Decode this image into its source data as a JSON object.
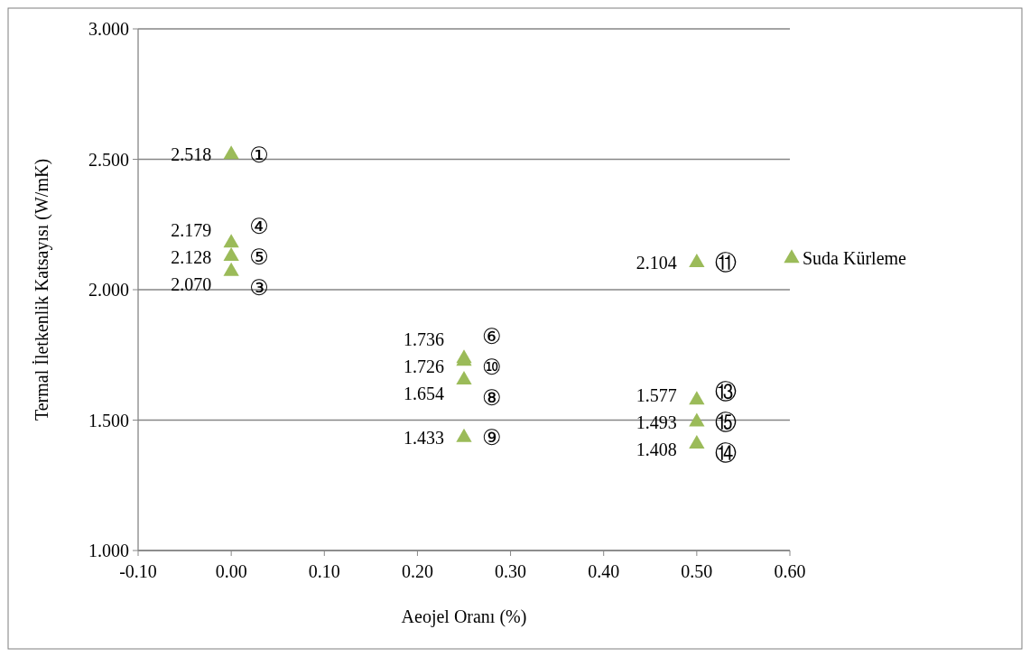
{
  "chart_data": {
    "type": "scatter",
    "xlabel": "Aeojel Oranı (%)",
    "ylabel": "Termal İletkenlik Katsayısı (W/mK)",
    "xlim": [
      -0.1,
      0.6
    ],
    "xticks": [
      {
        "value": -0.1,
        "label": "-0.10"
      },
      {
        "value": 0,
        "label": "0.00"
      },
      {
        "value": 0.1,
        "label": "0.10"
      },
      {
        "value": 0.2,
        "label": "0.20"
      },
      {
        "value": 0.3,
        "label": "0.30"
      },
      {
        "value": 0.4,
        "label": "0.40"
      },
      {
        "value": 0.5,
        "label": "0.50"
      },
      {
        "value": 0.6,
        "label": "0.60"
      }
    ],
    "ylim": [
      1,
      3
    ],
    "yticks": [
      {
        "value": 1,
        "label": "1.000"
      },
      {
        "value": 1.5,
        "label": "1.500"
      },
      {
        "value": 2,
        "label": "2.000"
      },
      {
        "value": 2.5,
        "label": "2.500"
      },
      {
        "value": 3,
        "label": "3.000"
      }
    ],
    "grid": "y",
    "legend": "right",
    "marker": "triangle",
    "series": [
      {
        "name": "Suda Kürleme",
        "color": "#9bbb59",
        "x": [
          0,
          0,
          0,
          0,
          0.25,
          0.25,
          0.25,
          0.25,
          0.5,
          0.5,
          0.5,
          0.5
        ],
        "values": [
          2.518,
          2.179,
          2.128,
          2.07,
          1.736,
          1.726,
          1.654,
          1.433,
          2.104,
          1.577,
          1.493,
          1.408
        ],
        "value_labels": [
          "2.518",
          "2.179",
          "2.128",
          "2.070",
          "1.736",
          "1.726",
          "1.654",
          "1.433",
          "2.104",
          "1.577",
          "1.493",
          "1.408"
        ]
      }
    ],
    "annotations": [
      {
        "text": "①",
        "x": 0,
        "y": 2.518
      },
      {
        "text": "④",
        "x": 0,
        "y": 2.179
      },
      {
        "text": "⑤",
        "x": 0,
        "y": 2.128
      },
      {
        "text": "③",
        "x": 0,
        "y": 2.07
      },
      {
        "text": "⑥",
        "x": 0.25,
        "y": 1.736
      },
      {
        "text": "⑩",
        "x": 0.25,
        "y": 1.726
      },
      {
        "text": "⑧",
        "x": 0.25,
        "y": 1.654
      },
      {
        "text": "⑨",
        "x": 0.25,
        "y": 1.433
      },
      {
        "text": "⑪",
        "x": 0.5,
        "y": 2.104
      },
      {
        "text": "⑬",
        "x": 0.5,
        "y": 1.577
      },
      {
        "text": "⑮",
        "x": 0.5,
        "y": 1.493
      },
      {
        "text": "⑭",
        "x": 0.5,
        "y": 1.408
      }
    ]
  }
}
